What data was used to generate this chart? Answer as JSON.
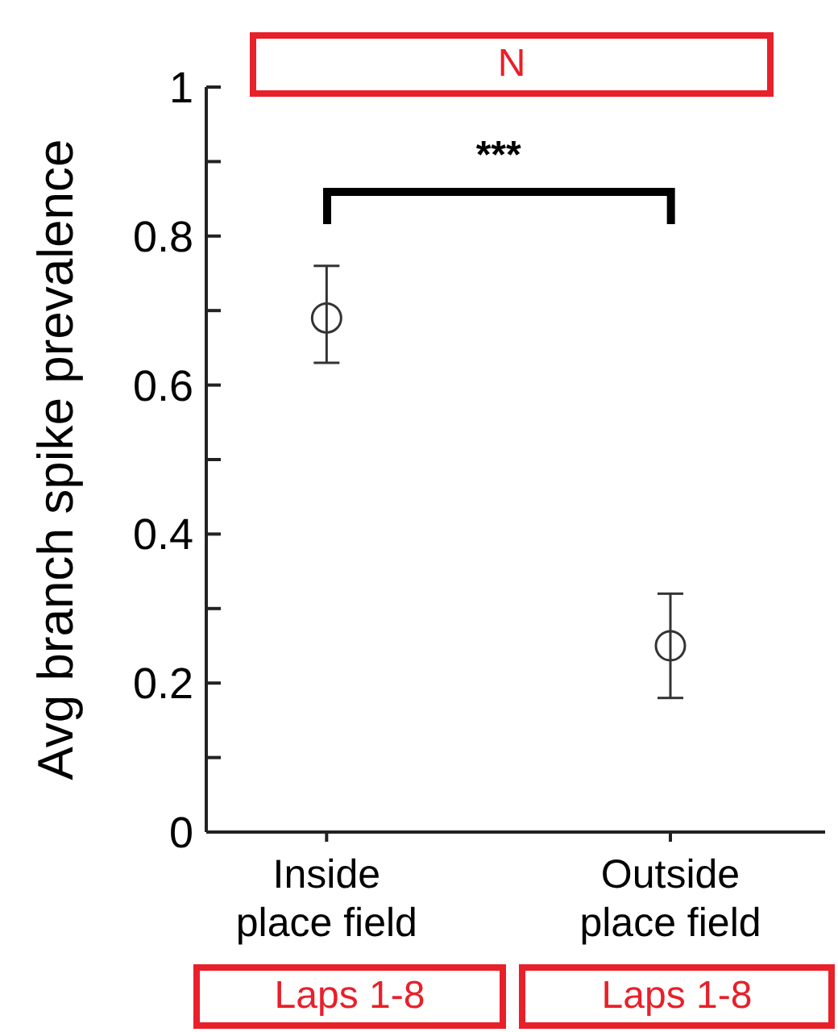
{
  "chart_data": {
    "type": "scatter",
    "ylabel": "Avg branch spike prevalence",
    "categories": [
      "Inside place field",
      "Outside place field"
    ],
    "values": [
      0.69,
      0.25
    ],
    "errors": [
      [
        0.63,
        0.76
      ],
      [
        0.18,
        0.32
      ]
    ],
    "color": "#333333",
    "marker": "circle",
    "grid": false,
    "legend": false,
    "ylim": [
      0,
      1
    ],
    "yticks": [
      0,
      {
        "value": 0.1,
        "label": null
      },
      {
        "value": 0.2,
        "label": "0.2"
      },
      {
        "value": 0.3,
        "label": null
      },
      {
        "value": 0.4,
        "label": "0.4"
      },
      {
        "value": 0.5,
        "label": null
      },
      {
        "value": 0.6,
        "label": "0.6"
      },
      {
        "value": 0.7,
        "label": null
      },
      {
        "value": 0.8,
        "label": "0.8"
      },
      {
        "value": 0.9,
        "label": null
      },
      1
    ],
    "annotations": [
      "N",
      "***",
      "Laps 1-8",
      "Laps 1-8"
    ]
  }
}
